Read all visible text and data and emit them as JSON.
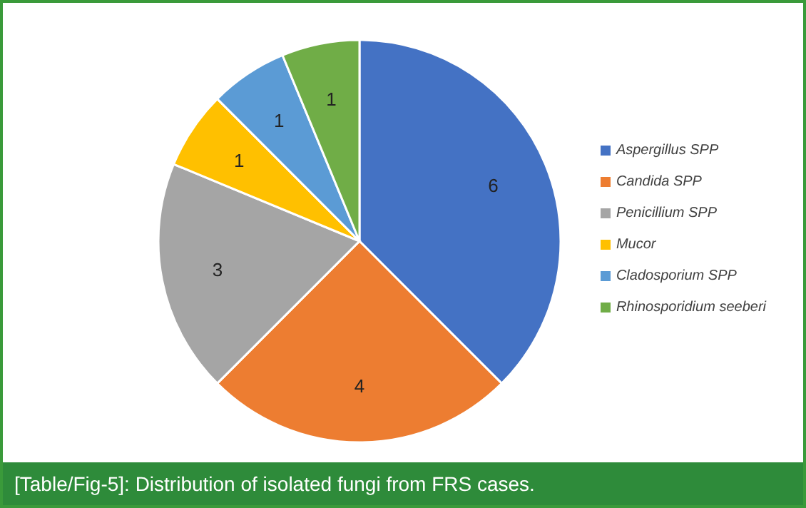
{
  "chart_data": {
    "type": "pie",
    "categories": [
      "Aspergillus SPP",
      "Candida SPP",
      "Penicillium SPP",
      "Mucor",
      "Cladosporium SPP",
      "Rhinosporidium seeberi"
    ],
    "values": [
      6,
      4,
      3,
      1,
      1,
      1
    ],
    "colors": [
      "#4472c4",
      "#ed7d31",
      "#a5a5a5",
      "#ffc000",
      "#5b9bd5",
      "#70ad47"
    ],
    "data_labels": true,
    "legend": "right",
    "annotations": [
      "[Table/Fig-5]: Distribution of isolated fungi from FRS cases."
    ]
  }
}
